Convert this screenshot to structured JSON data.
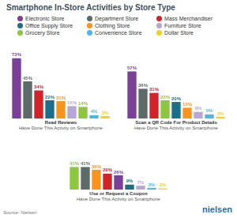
{
  "title": "Smartphone In-Store Activities by Store Type",
  "source": "Source: Nielsen",
  "logo": "nielsen",
  "chart_data": [
    {
      "type": "bar",
      "title": "Read Reviews",
      "subtitle": "Have Done This Activity on Smartphone",
      "legend": "top",
      "categories": [
        "Electronic Store",
        "Department Store",
        "Mass Merchandiser",
        "Office Supply Store",
        "Clothing Store",
        "Furniture Store",
        "Grocery Store",
        "Convenience Store",
        "Dollar Store"
      ],
      "values": [
        73,
        45,
        34,
        22,
        21,
        15,
        14,
        4,
        3
      ],
      "value_labels": [
        "73%",
        "45%",
        "34%",
        "22%",
        "21%",
        "15%",
        "14%",
        "4%",
        "3%"
      ],
      "colors": [
        "#7b3f98",
        "#5d6b68",
        "#d2232a",
        "#1b6f8a",
        "#f7941d",
        "#b7a8d3",
        "#8dc63f",
        "#4db8e8",
        "#f3d11f"
      ],
      "data_labels": true,
      "tick_labels": false,
      "grid": false
    },
    {
      "type": "bar",
      "title": "Scan a QR Code For Product Details",
      "subtitle": "Have Done This Activity on Smartphone",
      "categories": [
        "Electronic Store",
        "Department Store",
        "Mass Merchandiser",
        "Grocery Store",
        "Office Supply Store",
        "Clothing Store",
        "Furniture Store",
        "Convenience Store",
        "Dollar Store"
      ],
      "values": [
        57,
        36,
        31,
        22,
        20,
        13,
        8,
        5,
        2
      ],
      "value_labels": [
        "57%",
        "36%",
        "31%",
        "22%",
        "20%",
        "13%",
        "8%",
        "5%",
        "2%"
      ],
      "colors": [
        "#7b3f98",
        "#5d6b68",
        "#d2232a",
        "#8dc63f",
        "#1b6f8a",
        "#f7941d",
        "#b7a8d3",
        "#4db8e8",
        "#f3d11f"
      ],
      "data_labels": true,
      "tick_labels": false,
      "grid": false
    },
    {
      "type": "bar",
      "title": "Use or Request a Coupon",
      "subtitle": "Have Done This Activity on Smartphone",
      "categories": [
        "Grocery Store",
        "Department Store",
        "Clothing Store",
        "Mass Merchandiser",
        "Electronic Store",
        "Office Supply Store",
        "Furniture Store",
        "Convenience Store",
        "Dollar Store"
      ],
      "values": [
        41,
        41,
        36,
        29,
        26,
        9,
        7,
        3,
        2
      ],
      "value_labels": [
        "41%",
        "41%",
        "36%",
        "29%",
        "26%",
        "9%",
        "7%",
        "3%",
        "2%"
      ],
      "colors": [
        "#8dc63f",
        "#5d6b68",
        "#f7941d",
        "#d2232a",
        "#7b3f98",
        "#1b6f8a",
        "#b7a8d3",
        "#4db8e8",
        "#f3d11f"
      ],
      "data_labels": true,
      "tick_labels": false,
      "grid": false
    }
  ]
}
